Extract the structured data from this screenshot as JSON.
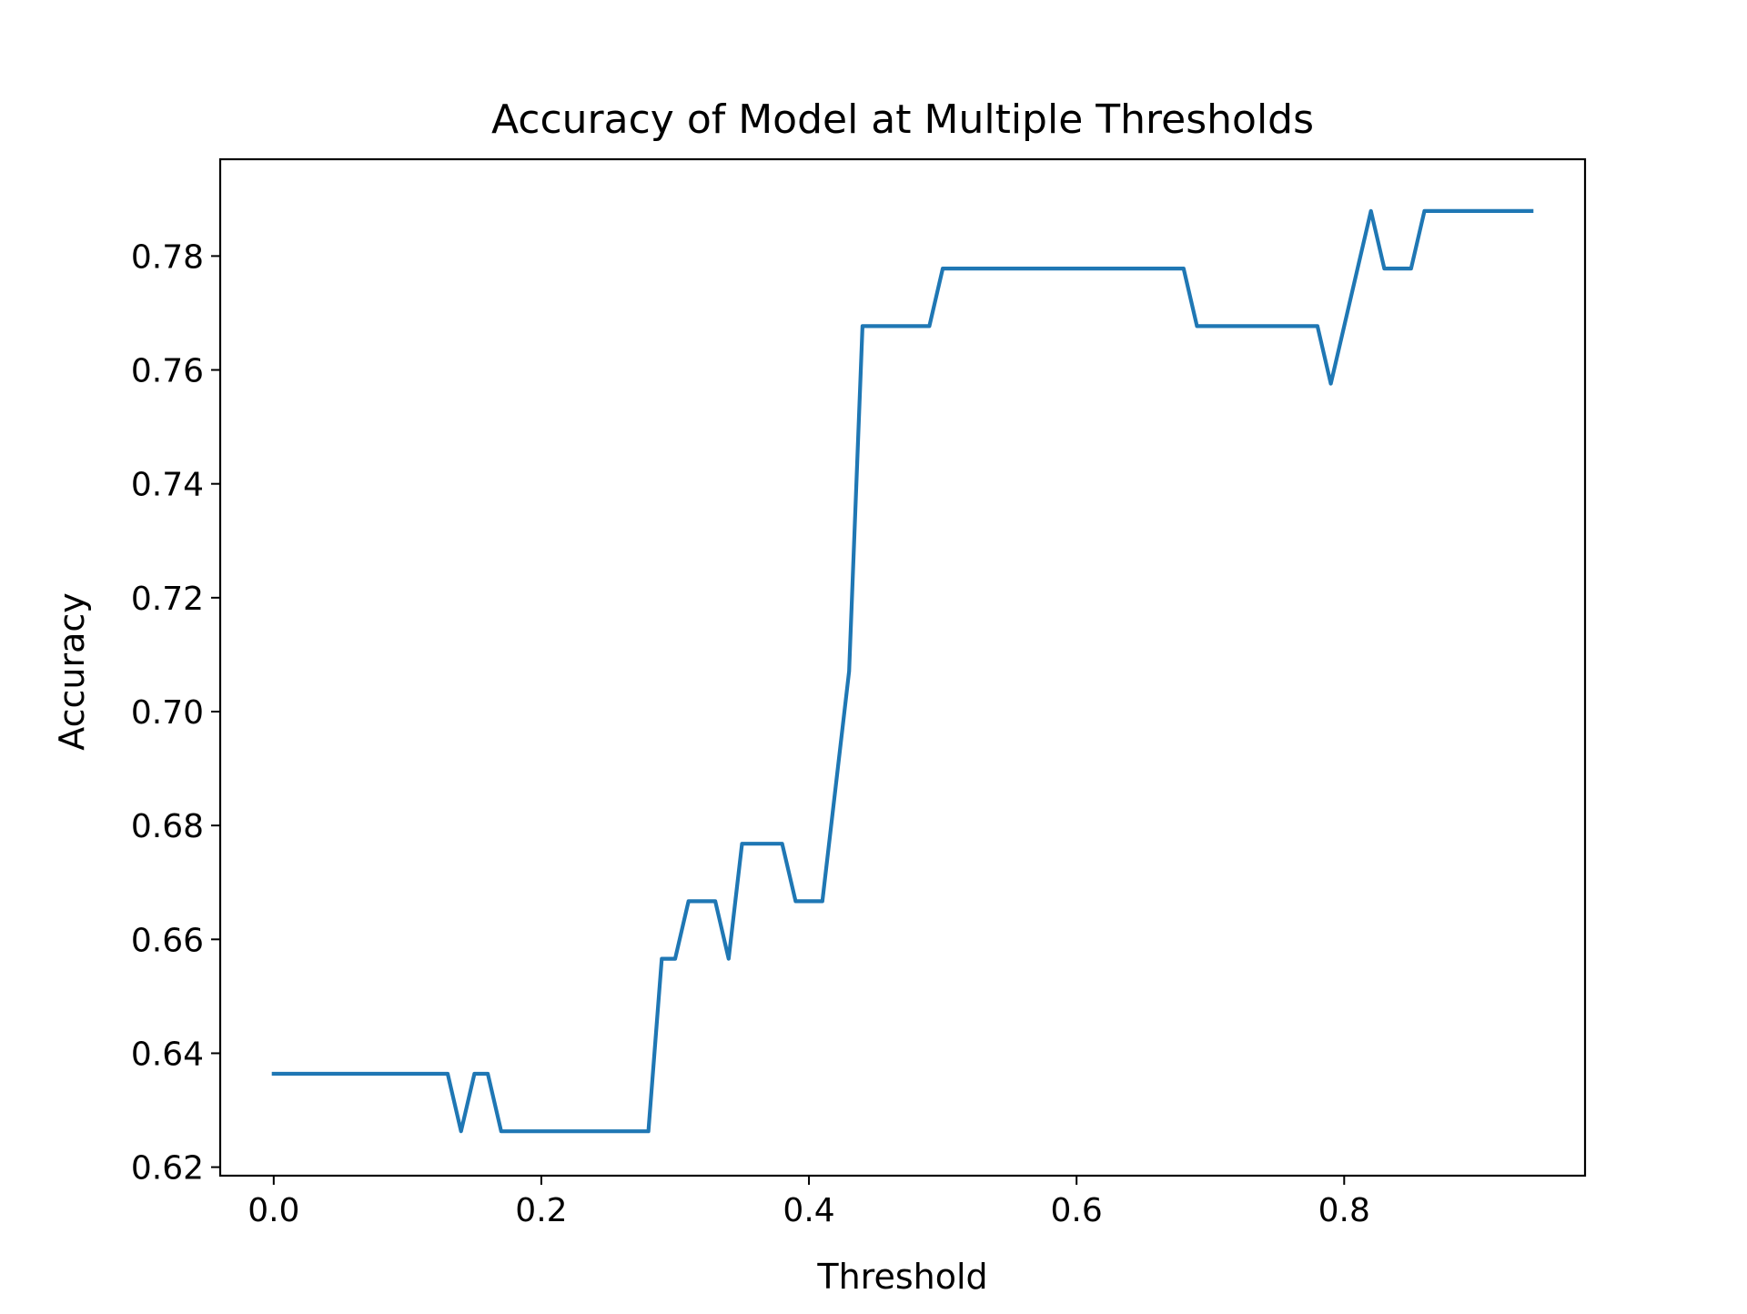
{
  "chart_data": {
    "type": "line",
    "title": "Accuracy of Model at Multiple Thresholds",
    "xlabel": "Threshold",
    "ylabel": "Accuracy",
    "xlim": [
      -0.04,
      0.98
    ],
    "ylim": [
      0.6185,
      0.797
    ],
    "xticks": [
      {
        "value": 0.0,
        "label": "0.0"
      },
      {
        "value": 0.2,
        "label": "0.2"
      },
      {
        "value": 0.4,
        "label": "0.4"
      },
      {
        "value": 0.6,
        "label": "0.6"
      },
      {
        "value": 0.8,
        "label": "0.8"
      }
    ],
    "yticks": [
      {
        "value": 0.62,
        "label": "0.62"
      },
      {
        "value": 0.64,
        "label": "0.64"
      },
      {
        "value": 0.66,
        "label": "0.66"
      },
      {
        "value": 0.68,
        "label": "0.68"
      },
      {
        "value": 0.7,
        "label": "0.70"
      },
      {
        "value": 0.72,
        "label": "0.72"
      },
      {
        "value": 0.74,
        "label": "0.74"
      },
      {
        "value": 0.76,
        "label": "0.76"
      },
      {
        "value": 0.78,
        "label": "0.78"
      }
    ],
    "grid": false,
    "series": [
      {
        "color": "#1f77b4",
        "x": [
          0.0,
          0.01,
          0.02,
          0.03,
          0.04,
          0.05,
          0.06,
          0.07,
          0.08,
          0.09,
          0.1,
          0.11,
          0.12,
          0.13,
          0.14,
          0.15,
          0.16,
          0.17,
          0.18,
          0.19,
          0.2,
          0.21,
          0.22,
          0.23,
          0.24,
          0.25,
          0.26,
          0.27,
          0.28,
          0.29,
          0.3,
          0.31,
          0.32,
          0.33,
          0.34,
          0.35,
          0.36,
          0.37,
          0.38,
          0.39,
          0.4,
          0.41,
          0.42,
          0.43,
          0.44,
          0.45,
          0.46,
          0.47,
          0.48,
          0.49,
          0.5,
          0.51,
          0.52,
          0.53,
          0.54,
          0.55,
          0.56,
          0.57,
          0.58,
          0.59,
          0.6,
          0.61,
          0.62,
          0.63,
          0.64,
          0.65,
          0.66,
          0.67,
          0.68,
          0.69,
          0.7,
          0.71,
          0.72,
          0.73,
          0.74,
          0.75,
          0.76,
          0.77,
          0.78,
          0.79,
          0.8,
          0.81,
          0.82,
          0.83,
          0.84,
          0.85,
          0.86,
          0.87,
          0.88,
          0.89,
          0.9,
          0.91,
          0.92,
          0.93,
          0.94
        ],
        "values": [
          0.6364,
          0.6364,
          0.6364,
          0.6364,
          0.6364,
          0.6364,
          0.6364,
          0.6364,
          0.6364,
          0.6364,
          0.6364,
          0.6364,
          0.6364,
          0.6364,
          0.6263,
          0.6364,
          0.6364,
          0.6263,
          0.6263,
          0.6263,
          0.6263,
          0.6263,
          0.6263,
          0.6263,
          0.6263,
          0.6263,
          0.6263,
          0.6263,
          0.6263,
          0.6566,
          0.6566,
          0.6667,
          0.6667,
          0.6667,
          0.6566,
          0.6768,
          0.6768,
          0.6768,
          0.6768,
          0.6667,
          0.6667,
          0.6667,
          0.6869,
          0.7071,
          0.7677,
          0.7677,
          0.7677,
          0.7677,
          0.7677,
          0.7677,
          0.7778,
          0.7778,
          0.7778,
          0.7778,
          0.7778,
          0.7778,
          0.7778,
          0.7778,
          0.7778,
          0.7778,
          0.7778,
          0.7778,
          0.7778,
          0.7778,
          0.7778,
          0.7778,
          0.7778,
          0.7778,
          0.7778,
          0.7677,
          0.7677,
          0.7677,
          0.7677,
          0.7677,
          0.7677,
          0.7677,
          0.7677,
          0.7677,
          0.7677,
          0.7576,
          0.7677,
          0.7778,
          0.7879,
          0.7778,
          0.7778,
          0.7778,
          0.7879,
          0.7879,
          0.7879,
          0.7879,
          0.7879,
          0.7879,
          0.7879,
          0.7879,
          0.7879
        ]
      }
    ]
  }
}
